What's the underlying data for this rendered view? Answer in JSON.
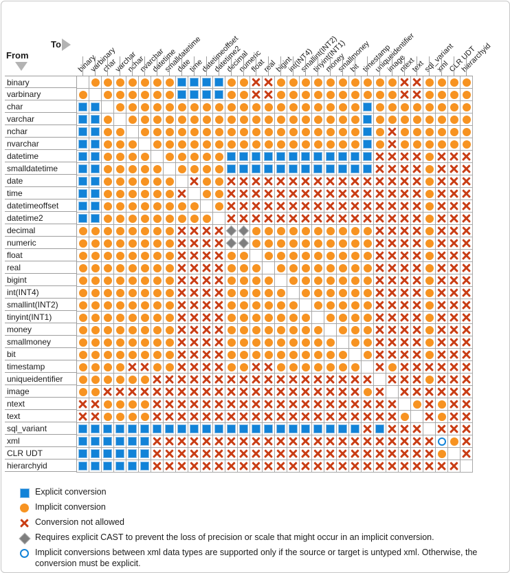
{
  "header": {
    "from_label": "From",
    "to_label": "To"
  },
  "types": [
    "binary",
    "varbinary",
    "char",
    "varchar",
    "nchar",
    "nvarchar",
    "datetime",
    "smalldatetime",
    "date",
    "time",
    "datetimeoffset",
    "datetime2",
    "decimal",
    "numeric",
    "float",
    "real",
    "bigint",
    "int(INT4)",
    "smallint(INT2)",
    "tinyint(INT1)",
    "money",
    "smallmoney",
    "bit",
    "timestamp",
    "uniqueidentifier",
    "image",
    "ntext",
    "text",
    "sql_variant",
    "xml",
    "CLR UDT",
    "hierarchyid"
  ],
  "symbol_key": {
    "E": "explicit-conversion-blue-square",
    "I": "implicit-conversion-orange-circle",
    "X": "conversion-not-allowed-red-x",
    "D": "explicit-cast-gray-diamond",
    "O": "untyped-xml-open-circle",
    ".": "blank-same-type"
  },
  "matrix": [
    ".IIIIIIIEEEEIIXXIIIIIIIIIIXXIIII",
    "I.IIIIIIEEEEIIXXIIIIIIIIIIXXIIII",
    "EE.IIIIIIIIIIIIIIIIIIIIEIIIIIIII",
    "EEI.IIIIIIIIIIIIIIIIIIIEIIIIIIII",
    "EEII.IIIIIIIIIIIIIIIIIIEIXIIIIII",
    "EEIII.IIIIIIIIIIIIIIIIIEIXIIIIII",
    "EEIIII.IIIIIEEEEEEEEEEEEXXXXIXXX",
    "EEIIIII.IIIIEEEEEEEEEEEEXXXXIXXX",
    "EEIIIIII.XIIXXXXXXXXXXXXXXXXIXXX",
    "EEIIIIIIX.IIXXXXXXXXXXXXXXXXIXXX",
    "EEIIIIIIII.IXXXXXXXXXXXXXXXXIXXX",
    "EEIIIIIIIII.XXXXXXXXXXXXXXXXIXXX",
    "IIIIIIIIXXXXDDIIIIIIIIIIXXXXIXXX",
    "IIIIIIIIXXXXDDIIIIIIIIIIXXXXIXXX",
    "IIIIIIIIXXXXII.IIIIIIIIIXXXXIXXX",
    "IIIIIIIIXXXXIII.IIIIIIIIXXXXIXXX",
    "IIIIIIIIXXXXIIII.IIIIIIIXXXXIXXX",
    "IIIIIIIIXXXXIIIII.IIIIIIXXXXIXXX",
    "IIIIIIIIXXXXIIIIII.IIIIIXXXXIXXX",
    "IIIIIIIIXXXXIIIIIII.IIIIXXXXIXXX",
    "IIIIIIIIXXXXIIIIIIII.IIIXXXXIXXX",
    "IIIIIIIIXXXXIIIIIIIII.IIXXXXIXXX",
    "IIIIIIIIXXXXIIIIIIIIII.IXXXXIXXX",
    "IIIIXXIIXXXXIIXXIIIIIII.XIXXXXXX",
    "IIIIIIXXXXXXXXXXXXXXXXXX.XXXIXXX",
    "IIXXXXXXXXXXXXXXXXXXXXXIX.XXXXXX",
    "XXIIIIXXXXXXXXXXXXXXXXXXXX.IXIXX",
    "XXIIIIXXXXXXXXXXXXXXXXXXXXI.XIXX",
    "EEEEEEEEEEEEEEEEEEEEEEEXEXXX.XXX",
    "EEEEEEXXXXXXXXXXXXXXXXXXXXXXXOIX",
    "EEEEEEXXXXXXXXXXXXXXXXXXXXXXXI.X",
    "EEEEEEXXXXXXXXXXXXXXXXXXXXXXXXX."
  ],
  "legend": {
    "items": [
      {
        "symbol": "E",
        "text": "Explicit conversion"
      },
      {
        "symbol": "I",
        "text": "Implicit conversion"
      },
      {
        "symbol": "X",
        "text": "Conversion not allowed"
      },
      {
        "symbol": "D",
        "text": "Requires explicit CAST to prevent the loss of precision or scale that might occur in an implicit conversion."
      },
      {
        "symbol": "O",
        "text": "Implicit conversions between xml data types are supported only if the source or target is untyped xml. Otherwise, the conversion must be explicit."
      }
    ]
  },
  "colors": {
    "explicit_blue": "#1283d8",
    "implicit_orange": "#f79321",
    "not_allowed_red": "#c93d14",
    "cast_diamond_gray": "#7e7e7e",
    "grid_line": "#9e9e9e"
  }
}
